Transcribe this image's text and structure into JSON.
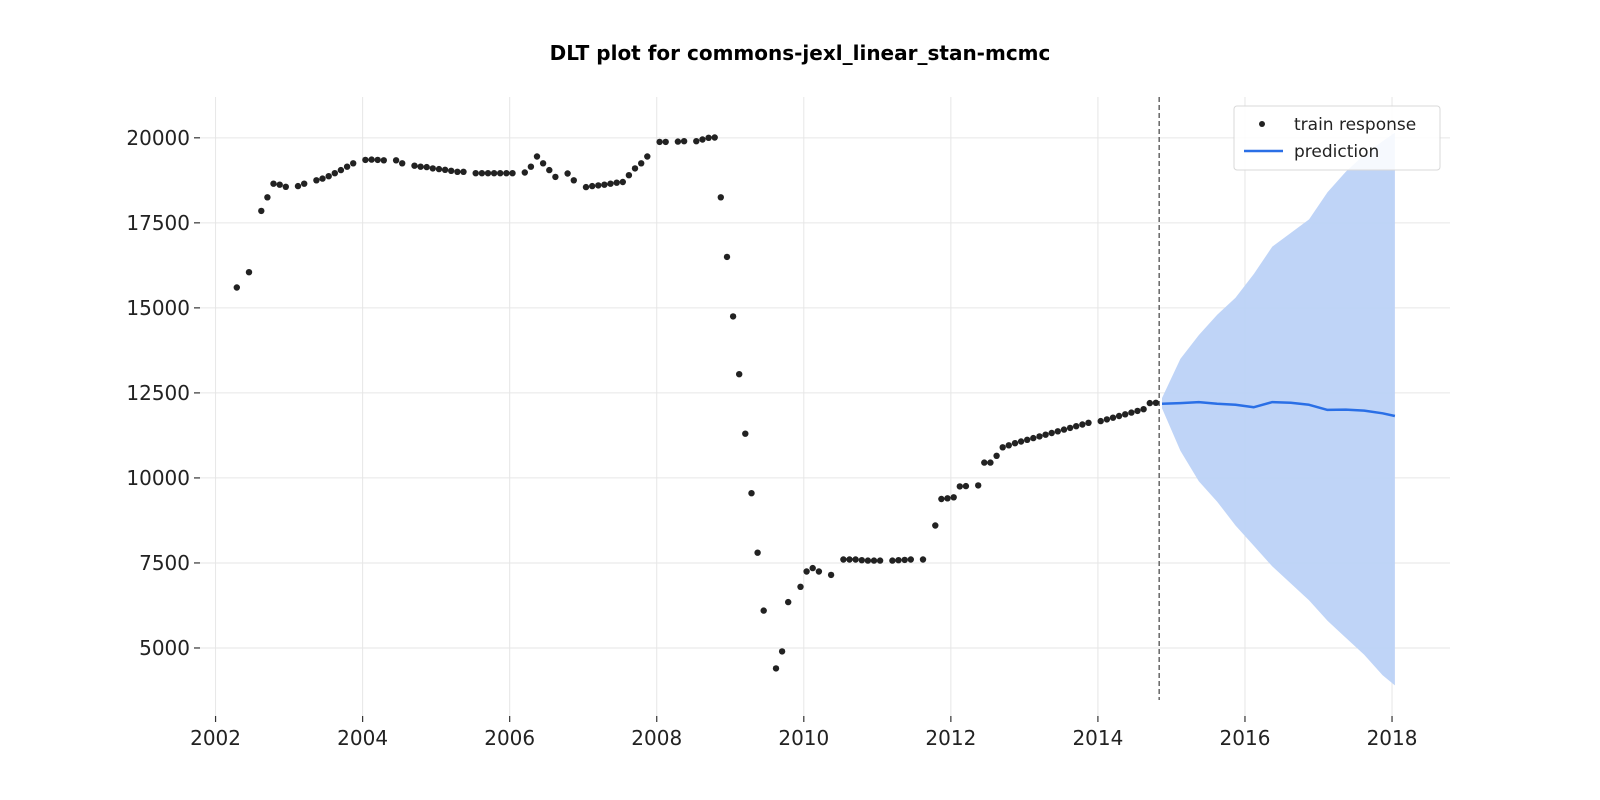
{
  "chart_data": {
    "type": "scatter",
    "title": "DLT plot for commons-jexl_linear_stan-mcmc",
    "xlabel": "",
    "ylabel": "",
    "xlim": [
      "2001-10-15",
      "2018-10-15"
    ],
    "ylim": [
      3000,
      21200
    ],
    "x_ticks": [
      "2002",
      "2004",
      "2006",
      "2008",
      "2010",
      "2012",
      "2014",
      "2016",
      "2018"
    ],
    "y_ticks": [
      "5000",
      "7500",
      "10000",
      "12500",
      "15000",
      "17500",
      "20000"
    ],
    "grid": true,
    "legend_position": "top-right",
    "colors": {
      "train": "#222222",
      "prediction": "#2a6fe6",
      "band": "#bcd2f7",
      "divider": "#666666"
    },
    "split_date": "2014-11-01",
    "series": [
      {
        "name": "train response",
        "kind": "scatter",
        "points": [
          [
            "2002-04",
            15600
          ],
          [
            "2002-06",
            16050
          ],
          [
            "2002-08",
            17850
          ],
          [
            "2002-09",
            18250
          ],
          [
            "2002-10",
            18650
          ],
          [
            "2002-11",
            18620
          ],
          [
            "2002-12",
            18560
          ],
          [
            "2003-02",
            18580
          ],
          [
            "2003-03",
            18650
          ],
          [
            "2003-05",
            18750
          ],
          [
            "2003-06",
            18800
          ],
          [
            "2003-07",
            18870
          ],
          [
            "2003-08",
            18960
          ],
          [
            "2003-09",
            19050
          ],
          [
            "2003-10",
            19150
          ],
          [
            "2003-11",
            19250
          ],
          [
            "2004-01",
            19350
          ],
          [
            "2004-02",
            19360
          ],
          [
            "2004-03",
            19350
          ],
          [
            "2004-04",
            19340
          ],
          [
            "2004-06",
            19340
          ],
          [
            "2004-07",
            19250
          ],
          [
            "2004-09",
            19180
          ],
          [
            "2004-10",
            19150
          ],
          [
            "2004-11",
            19140
          ],
          [
            "2004-12",
            19100
          ],
          [
            "2005-01",
            19080
          ],
          [
            "2005-02",
            19060
          ],
          [
            "2005-03",
            19030
          ],
          [
            "2005-04",
            19000
          ],
          [
            "2005-05",
            19000
          ],
          [
            "2005-07",
            18960
          ],
          [
            "2005-08",
            18960
          ],
          [
            "2005-09",
            18960
          ],
          [
            "2005-10",
            18960
          ],
          [
            "2005-11",
            18960
          ],
          [
            "2005-12",
            18960
          ],
          [
            "2006-01",
            18960
          ],
          [
            "2006-03",
            18980
          ],
          [
            "2006-04",
            19150
          ],
          [
            "2006-05",
            19450
          ],
          [
            "2006-06",
            19250
          ],
          [
            "2006-07",
            19050
          ],
          [
            "2006-08",
            18850
          ],
          [
            "2006-10",
            18950
          ],
          [
            "2006-11",
            18750
          ],
          [
            "2007-01",
            18550
          ],
          [
            "2007-02",
            18580
          ],
          [
            "2007-03",
            18600
          ],
          [
            "2007-04",
            18620
          ],
          [
            "2007-05",
            18650
          ],
          [
            "2007-06",
            18680
          ],
          [
            "2007-07",
            18700
          ],
          [
            "2007-08",
            18900
          ],
          [
            "2007-09",
            19100
          ],
          [
            "2007-10",
            19250
          ],
          [
            "2007-11",
            19450
          ],
          [
            "2008-01",
            19880
          ],
          [
            "2008-02",
            19880
          ],
          [
            "2008-04",
            19890
          ],
          [
            "2008-05",
            19900
          ],
          [
            "2008-07",
            19900
          ],
          [
            "2008-08",
            19950
          ],
          [
            "2008-09",
            20000
          ],
          [
            "2008-10",
            20010
          ],
          [
            "2008-11",
            18250
          ],
          [
            "2008-12",
            16500
          ],
          [
            "2009-01",
            14750
          ],
          [
            "2009-02",
            13050
          ],
          [
            "2009-03",
            11300
          ],
          [
            "2009-04",
            9550
          ],
          [
            "2009-05",
            7800
          ],
          [
            "2009-06",
            6100
          ],
          [
            "2009-08",
            4400
          ],
          [
            "2009-09",
            4900
          ],
          [
            "2009-10",
            6350
          ],
          [
            "2009-12",
            6800
          ],
          [
            "2010-01",
            7250
          ],
          [
            "2010-02",
            7350
          ],
          [
            "2010-03",
            7250
          ],
          [
            "2010-05",
            7150
          ],
          [
            "2010-07",
            7600
          ],
          [
            "2010-08",
            7600
          ],
          [
            "2010-09",
            7600
          ],
          [
            "2010-10",
            7580
          ],
          [
            "2010-11",
            7570
          ],
          [
            "2010-12",
            7570
          ],
          [
            "2011-01",
            7570
          ],
          [
            "2011-03",
            7570
          ],
          [
            "2011-04",
            7580
          ],
          [
            "2011-05",
            7590
          ],
          [
            "2011-06",
            7600
          ],
          [
            "2011-08",
            7600
          ],
          [
            "2011-10",
            8600
          ],
          [
            "2011-11",
            9380
          ],
          [
            "2011-12",
            9400
          ],
          [
            "2012-01",
            9430
          ],
          [
            "2012-02",
            9750
          ],
          [
            "2012-03",
            9760
          ],
          [
            "2012-05",
            9780
          ],
          [
            "2012-06",
            10450
          ],
          [
            "2012-07",
            10450
          ],
          [
            "2012-08",
            10650
          ],
          [
            "2012-09",
            10900
          ],
          [
            "2012-10",
            10960
          ],
          [
            "2012-11",
            11020
          ],
          [
            "2012-12",
            11070
          ],
          [
            "2013-01",
            11120
          ],
          [
            "2013-02",
            11170
          ],
          [
            "2013-03",
            11220
          ],
          [
            "2013-04",
            11270
          ],
          [
            "2013-05",
            11320
          ],
          [
            "2013-06",
            11370
          ],
          [
            "2013-07",
            11420
          ],
          [
            "2013-08",
            11470
          ],
          [
            "2013-09",
            11520
          ],
          [
            "2013-10",
            11570
          ],
          [
            "2013-11",
            11620
          ],
          [
            "2014-01",
            11670
          ],
          [
            "2014-02",
            11720
          ],
          [
            "2014-03",
            11770
          ],
          [
            "2014-04",
            11820
          ],
          [
            "2014-05",
            11870
          ],
          [
            "2014-06",
            11920
          ],
          [
            "2014-07",
            11970
          ],
          [
            "2014-08",
            12020
          ],
          [
            "2014-09",
            12200
          ],
          [
            "2014-10",
            12210
          ]
        ]
      },
      {
        "name": "prediction",
        "kind": "line",
        "points": [
          [
            "2014-11",
            12180
          ],
          [
            "2015-02",
            12200
          ],
          [
            "2015-05",
            12230
          ],
          [
            "2015-08",
            12180
          ],
          [
            "2015-11",
            12150
          ],
          [
            "2016-02",
            12080
          ],
          [
            "2016-05",
            12230
          ],
          [
            "2016-08",
            12210
          ],
          [
            "2016-11",
            12150
          ],
          [
            "2017-02",
            12000
          ],
          [
            "2017-05",
            12010
          ],
          [
            "2017-08",
            11980
          ],
          [
            "2017-11",
            11900
          ],
          [
            "2018-01",
            11820
          ]
        ]
      },
      {
        "name": "",
        "kind": "band",
        "points": [
          [
            "2014-11",
            12050,
            12350
          ],
          [
            "2015-02",
            10800,
            13500
          ],
          [
            "2015-05",
            9900,
            14200
          ],
          [
            "2015-08",
            9300,
            14800
          ],
          [
            "2015-11",
            8600,
            15300
          ],
          [
            "2016-02",
            8000,
            16000
          ],
          [
            "2016-05",
            7400,
            16800
          ],
          [
            "2016-08",
            6900,
            17200
          ],
          [
            "2016-11",
            6400,
            17600
          ],
          [
            "2017-02",
            5800,
            18400
          ],
          [
            "2017-05",
            5300,
            19000
          ],
          [
            "2017-08",
            4800,
            19500
          ],
          [
            "2017-11",
            4200,
            19900
          ],
          [
            "2018-01",
            3900,
            20150
          ]
        ]
      }
    ]
  }
}
